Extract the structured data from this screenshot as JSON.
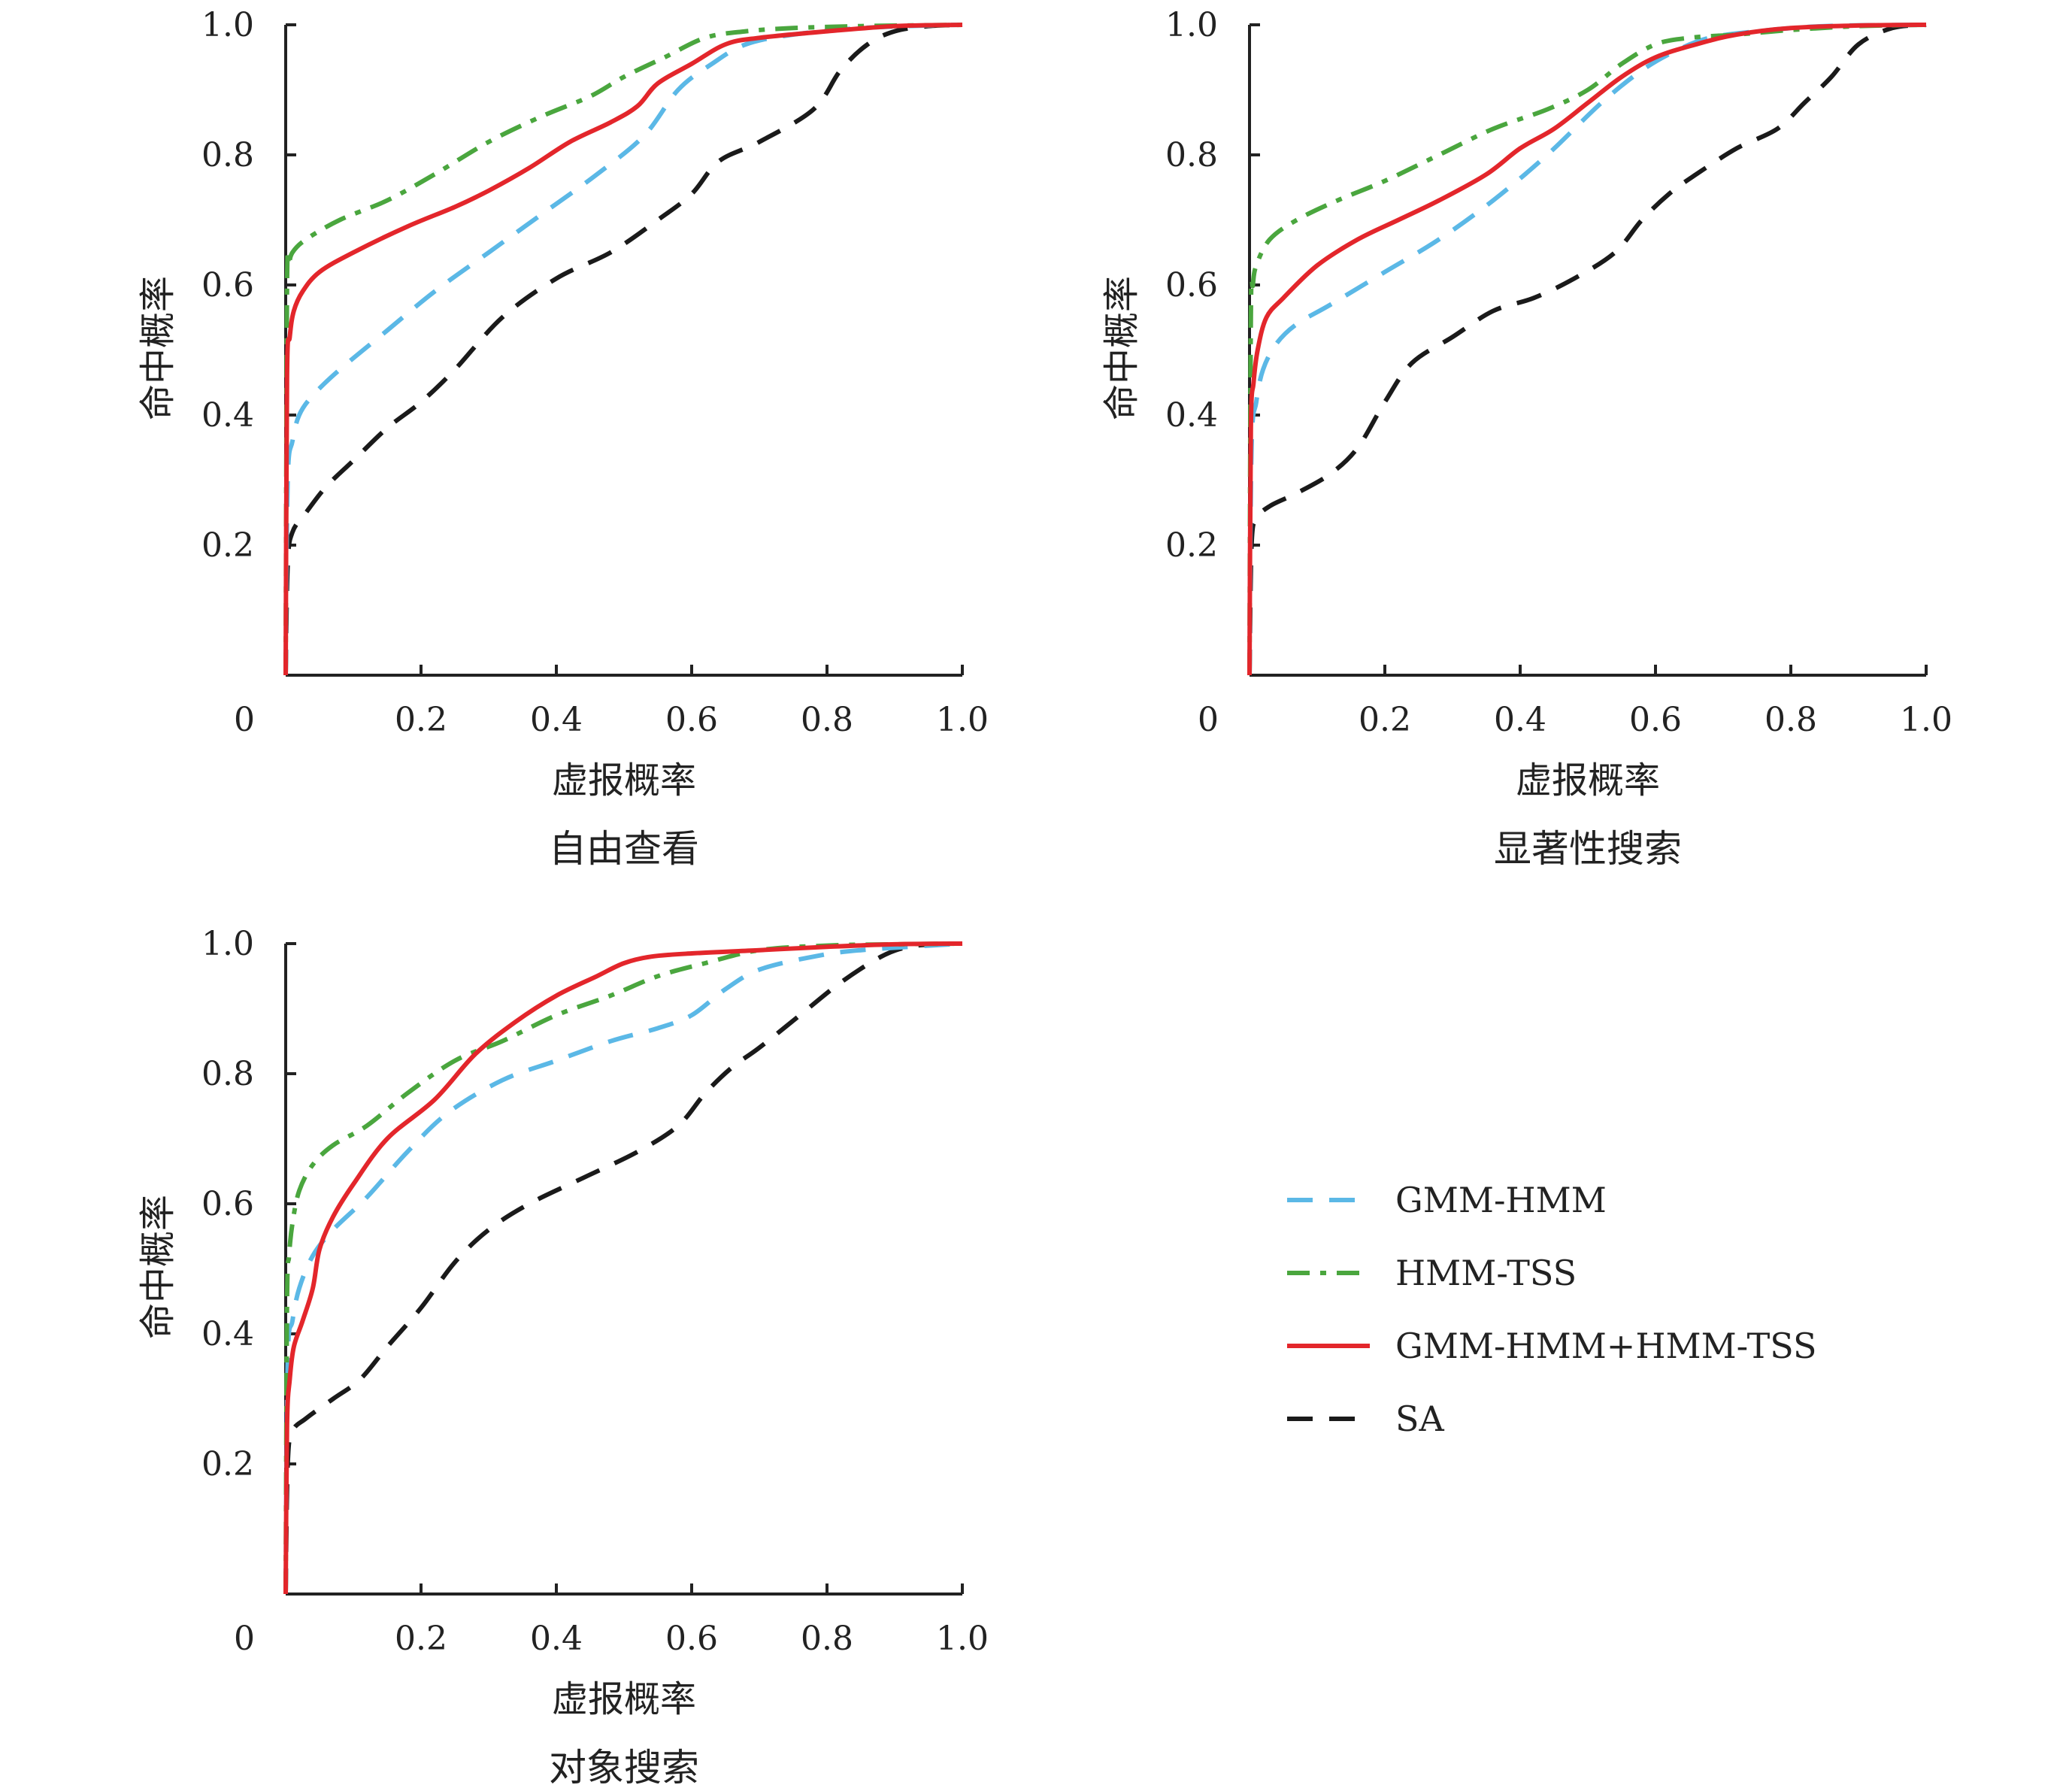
{
  "chart_data": [
    {
      "type": "line",
      "title": "自由查看",
      "xlabel": "虚报概率",
      "ylabel": "命中概率",
      "xlim": [
        0,
        1
      ],
      "ylim": [
        0,
        1
      ],
      "x_origin_label": "0",
      "x_ticks": [
        "0.2",
        "0.4",
        "0.6",
        "0.8",
        "1.0"
      ],
      "y_ticks": [
        "0.2",
        "0.4",
        "0.6",
        "0.8",
        "1.0"
      ],
      "grid": false,
      "series": [
        {
          "name": "GMM-HMM",
          "x": [
            0,
            0.003,
            0.01,
            0.02,
            0.04,
            0.08,
            0.15,
            0.22,
            0.3,
            0.38,
            0.46,
            0.53,
            0.58,
            0.63,
            0.68,
            0.75,
            0.85,
            0.95,
            1.0
          ],
          "y": [
            0,
            0.3,
            0.36,
            0.4,
            0.43,
            0.47,
            0.53,
            0.59,
            0.65,
            0.71,
            0.77,
            0.83,
            0.9,
            0.94,
            0.97,
            0.985,
            0.995,
            0.999,
            1.0
          ]
        },
        {
          "name": "HMM-TSS",
          "x": [
            0,
            0.002,
            0.005,
            0.01,
            0.03,
            0.08,
            0.15,
            0.22,
            0.3,
            0.38,
            0.45,
            0.5,
            0.56,
            0.62,
            0.68,
            0.75,
            0.85,
            1.0
          ],
          "y": [
            0,
            0.6,
            0.63,
            0.65,
            0.67,
            0.7,
            0.73,
            0.77,
            0.82,
            0.86,
            0.89,
            0.92,
            0.95,
            0.98,
            0.99,
            0.995,
            0.998,
            1.0
          ]
        },
        {
          "name": "GMM-HMM+HMM-TSS",
          "x": [
            0,
            0.002,
            0.006,
            0.012,
            0.025,
            0.05,
            0.1,
            0.18,
            0.25,
            0.3,
            0.36,
            0.42,
            0.48,
            0.52,
            0.55,
            0.6,
            0.65,
            0.7,
            0.8,
            0.9,
            1.0
          ],
          "y": [
            0,
            0.46,
            0.52,
            0.56,
            0.59,
            0.62,
            0.65,
            0.69,
            0.72,
            0.745,
            0.78,
            0.82,
            0.85,
            0.875,
            0.91,
            0.94,
            0.97,
            0.98,
            0.99,
            0.998,
            1.0
          ]
        },
        {
          "name": "SA",
          "x": [
            0,
            0.003,
            0.01,
            0.03,
            0.06,
            0.1,
            0.15,
            0.2,
            0.25,
            0.32,
            0.4,
            0.48,
            0.55,
            0.6,
            0.64,
            0.7,
            0.78,
            0.82,
            0.86,
            0.9,
            0.95,
            1.0
          ],
          "y": [
            0,
            0.17,
            0.22,
            0.25,
            0.29,
            0.33,
            0.38,
            0.42,
            0.47,
            0.55,
            0.61,
            0.65,
            0.7,
            0.74,
            0.79,
            0.82,
            0.87,
            0.93,
            0.97,
            0.99,
            0.998,
            1.0
          ]
        }
      ]
    },
    {
      "type": "line",
      "title": "显著性搜索",
      "xlabel": "虚报概率",
      "ylabel": "命中概率",
      "xlim": [
        0,
        1
      ],
      "ylim": [
        0,
        1
      ],
      "x_origin_label": "0",
      "x_ticks": [
        "0.2",
        "0.4",
        "0.6",
        "0.8",
        "1.0"
      ],
      "y_ticks": [
        "0.2",
        "0.4",
        "0.6",
        "0.8",
        "1.0"
      ],
      "grid": false,
      "series": [
        {
          "name": "GMM-HMM",
          "x": [
            0,
            0.003,
            0.01,
            0.02,
            0.04,
            0.07,
            0.12,
            0.2,
            0.28,
            0.36,
            0.44,
            0.52,
            0.58,
            0.63,
            0.68,
            0.75,
            0.85,
            1.0
          ],
          "y": [
            0,
            0.35,
            0.42,
            0.47,
            0.51,
            0.54,
            0.57,
            0.62,
            0.67,
            0.73,
            0.8,
            0.88,
            0.93,
            0.96,
            0.98,
            0.99,
            0.998,
            1.0
          ]
        },
        {
          "name": "HMM-TSS",
          "x": [
            0,
            0.002,
            0.005,
            0.01,
            0.03,
            0.07,
            0.13,
            0.2,
            0.28,
            0.36,
            0.44,
            0.5,
            0.55,
            0.6,
            0.65,
            0.72,
            0.8,
            0.9,
            1.0
          ],
          "y": [
            0,
            0.55,
            0.6,
            0.63,
            0.67,
            0.7,
            0.73,
            0.76,
            0.8,
            0.84,
            0.87,
            0.9,
            0.94,
            0.97,
            0.98,
            0.985,
            0.992,
            0.998,
            1.0
          ]
        },
        {
          "name": "GMM-HMM+HMM-TSS",
          "x": [
            0,
            0.002,
            0.006,
            0.012,
            0.025,
            0.05,
            0.1,
            0.16,
            0.22,
            0.28,
            0.35,
            0.4,
            0.45,
            0.5,
            0.55,
            0.6,
            0.66,
            0.72,
            0.8,
            0.9,
            1.0
          ],
          "y": [
            0,
            0.38,
            0.45,
            0.5,
            0.55,
            0.58,
            0.63,
            0.67,
            0.7,
            0.73,
            0.77,
            0.81,
            0.84,
            0.88,
            0.92,
            0.95,
            0.97,
            0.985,
            0.995,
            0.999,
            1.0
          ]
        },
        {
          "name": "SA",
          "x": [
            0,
            0.003,
            0.01,
            0.03,
            0.07,
            0.12,
            0.16,
            0.2,
            0.24,
            0.3,
            0.36,
            0.42,
            0.48,
            0.54,
            0.58,
            0.62,
            0.66,
            0.72,
            0.78,
            0.82,
            0.86,
            0.9,
            0.95,
            1.0
          ],
          "y": [
            0,
            0.2,
            0.24,
            0.26,
            0.28,
            0.31,
            0.35,
            0.42,
            0.48,
            0.52,
            0.56,
            0.58,
            0.61,
            0.65,
            0.7,
            0.74,
            0.77,
            0.81,
            0.84,
            0.88,
            0.92,
            0.97,
            0.995,
            1.0
          ]
        }
      ]
    },
    {
      "type": "line",
      "title": "对象搜索",
      "xlabel": "虚报概率",
      "ylabel": "命中概率",
      "xlim": [
        0,
        1
      ],
      "ylim": [
        0,
        1
      ],
      "x_origin_label": "0",
      "x_ticks": [
        "0.2",
        "0.4",
        "0.6",
        "0.8",
        "1.0"
      ],
      "y_ticks": [
        "0.2",
        "0.4",
        "0.6",
        "0.8",
        "1.0"
      ],
      "grid": false,
      "series": [
        {
          "name": "GMM-HMM",
          "x": [
            0,
            0.003,
            0.01,
            0.02,
            0.04,
            0.07,
            0.12,
            0.18,
            0.24,
            0.32,
            0.4,
            0.48,
            0.55,
            0.6,
            0.65,
            0.7,
            0.78,
            0.85,
            1.0
          ],
          "y": [
            0,
            0.36,
            0.42,
            0.47,
            0.52,
            0.56,
            0.61,
            0.68,
            0.74,
            0.79,
            0.82,
            0.85,
            0.87,
            0.89,
            0.93,
            0.96,
            0.98,
            0.99,
            1.0
          ]
        },
        {
          "name": "HMM-TSS",
          "x": [
            0,
            0.002,
            0.005,
            0.01,
            0.02,
            0.04,
            0.07,
            0.12,
            0.18,
            0.25,
            0.32,
            0.4,
            0.48,
            0.55,
            0.62,
            0.7,
            0.8,
            0.9,
            1.0
          ],
          "y": [
            0,
            0.45,
            0.52,
            0.57,
            0.62,
            0.66,
            0.69,
            0.72,
            0.77,
            0.82,
            0.85,
            0.89,
            0.92,
            0.95,
            0.97,
            0.99,
            0.997,
            0.999,
            1.0
          ]
        },
        {
          "name": "GMM-HMM+HMM-TSS",
          "x": [
            0,
            0.002,
            0.006,
            0.012,
            0.025,
            0.04,
            0.05,
            0.07,
            0.1,
            0.15,
            0.22,
            0.28,
            0.34,
            0.4,
            0.46,
            0.5,
            0.54,
            0.6,
            0.7,
            0.8,
            0.9,
            1.0
          ],
          "y": [
            0,
            0.26,
            0.33,
            0.38,
            0.42,
            0.47,
            0.53,
            0.58,
            0.63,
            0.7,
            0.76,
            0.83,
            0.88,
            0.92,
            0.95,
            0.97,
            0.98,
            0.985,
            0.99,
            0.995,
            0.999,
            1.0
          ]
        },
        {
          "name": "SA",
          "x": [
            0,
            0.003,
            0.01,
            0.03,
            0.07,
            0.11,
            0.15,
            0.2,
            0.25,
            0.3,
            0.36,
            0.44,
            0.52,
            0.58,
            0.62,
            0.66,
            0.7,
            0.76,
            0.82,
            0.88,
            0.92,
            0.96,
            1.0
          ],
          "y": [
            0,
            0.2,
            0.25,
            0.27,
            0.3,
            0.33,
            0.38,
            0.44,
            0.51,
            0.56,
            0.6,
            0.64,
            0.68,
            0.72,
            0.77,
            0.81,
            0.84,
            0.89,
            0.94,
            0.98,
            0.995,
            0.999,
            1.0
          ]
        }
      ]
    }
  ],
  "legend": {
    "position": "right-middle",
    "entries": [
      {
        "label": "GMM-HMM",
        "color": "#5bb8e6",
        "style": "dashed"
      },
      {
        "label": "HMM-TSS",
        "color": "#4aa63e",
        "style": "dash-dot"
      },
      {
        "label": "GMM-HMM+HMM-TSS",
        "color": "#e3262b",
        "style": "solid"
      },
      {
        "label": "SA",
        "color": "#1a1a1a",
        "style": "dashed"
      }
    ]
  },
  "colors": {
    "axis": "#222222",
    "background": "#ffffff"
  }
}
